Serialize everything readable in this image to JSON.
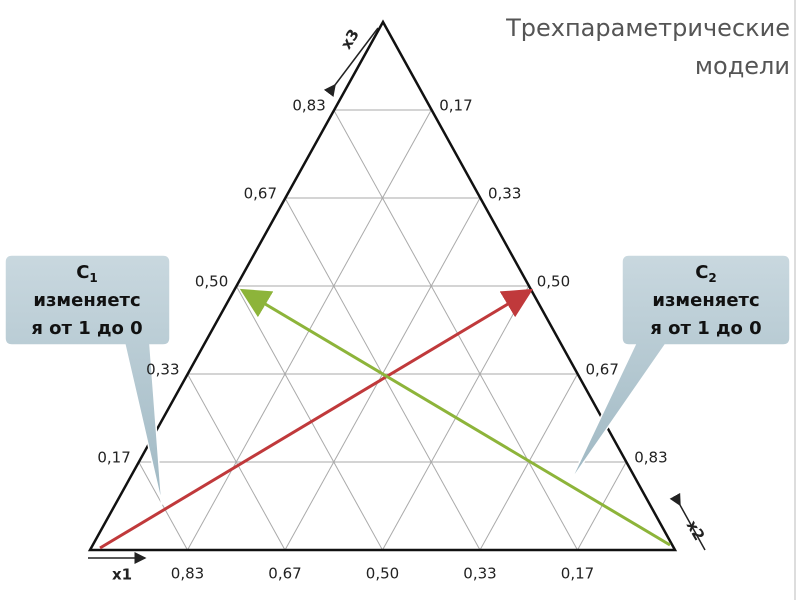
{
  "title": [
    "Трехпараметрические",
    "модели"
  ],
  "axes": {
    "x1": "x1",
    "x2": "x2",
    "x3": "x3"
  },
  "left_labels": [
    "0,17",
    "0,33",
    "0,50",
    "0,67",
    "0,83"
  ],
  "right_labels": [
    "0,83",
    "0,67",
    "0,50",
    "0,33",
    "0,17"
  ],
  "bottom_labels": [
    "0,83",
    "0,67",
    "0,50",
    "0,33",
    "0,17"
  ],
  "callouts": [
    {
      "symbol": "C",
      "subscript": "1",
      "lines": [
        "изменяетс",
        "я от 1 до 0"
      ]
    },
    {
      "symbol": "C",
      "subscript": "2",
      "lines": [
        "изменяетс",
        "я от 1 до 0"
      ]
    }
  ]
}
